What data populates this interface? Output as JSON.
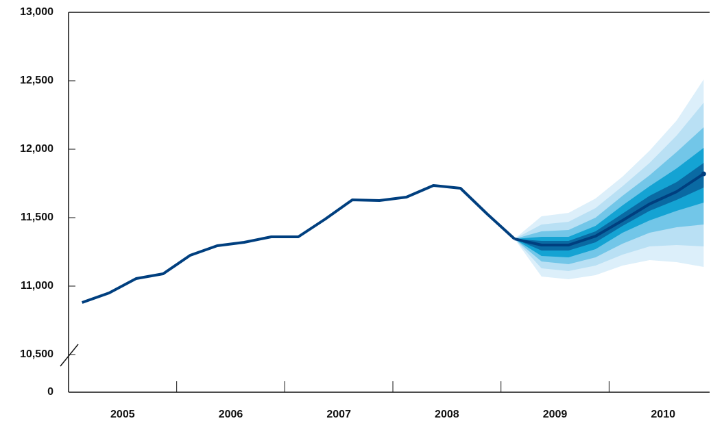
{
  "chart_data": {
    "type": "fan",
    "ylim": [
      10500,
      13000
    ],
    "yticks": [
      0,
      {
        "value": 10500,
        "label": "10,500"
      },
      {
        "value": 11000,
        "label": "11,000"
      },
      {
        "value": 11500,
        "label": "11,500"
      },
      {
        "value": 12000,
        "label": "12,000"
      },
      {
        "value": 12500,
        "label": "12,500"
      },
      {
        "value": 13000,
        "label": "13,000"
      }
    ],
    "axis_break": true,
    "xlim": [
      2005,
      2010.93
    ],
    "xticks": [
      {
        "value": 2005.5,
        "label": "2005"
      },
      {
        "value": 2006.5,
        "label": "2006"
      },
      {
        "value": 2007.5,
        "label": "2007"
      },
      {
        "value": 2008.5,
        "label": "2008"
      },
      {
        "value": 2009.5,
        "label": "2009"
      },
      {
        "value": 2010.5,
        "label": "2010"
      }
    ],
    "line": {
      "color": "#003f7f",
      "x": [
        2005.125,
        2005.375,
        2005.625,
        2005.875,
        2006.125,
        2006.375,
        2006.625,
        2006.875,
        2007.125,
        2007.375,
        2007.625,
        2007.875,
        2008.125,
        2008.375,
        2008.625,
        2008.875,
        2009.125
      ],
      "values": [
        10880,
        10950,
        11055,
        11090,
        11225,
        11295,
        11320,
        11360,
        11360,
        11490,
        11630,
        11625,
        11650,
        11735,
        11715,
        11525,
        11345
      ]
    },
    "projection": {
      "color": "#003f7f",
      "x": [
        2009.125,
        2009.375,
        2009.625,
        2009.875,
        2010.125,
        2010.375,
        2010.625,
        2010.875
      ],
      "values": [
        11345,
        11300,
        11300,
        11365,
        11480,
        11600,
        11690,
        11820
      ]
    },
    "fan": {
      "x": [
        2009.125,
        2009.375,
        2009.625,
        2009.875,
        2010.125,
        2010.375,
        2010.625,
        2010.875
      ],
      "bands": [
        {
          "color": "#dceffa",
          "upper": [
            11345,
            11510,
            11535,
            11640,
            11800,
            11990,
            12210,
            12510
          ],
          "lower": [
            11345,
            11070,
            11050,
            11080,
            11150,
            11190,
            11175,
            11140
          ]
        },
        {
          "color": "#b9e0f4",
          "upper": [
            11345,
            11450,
            11470,
            11570,
            11730,
            11900,
            12100,
            12340
          ],
          "lower": [
            11345,
            11130,
            11110,
            11150,
            11230,
            11290,
            11300,
            11290
          ]
        },
        {
          "color": "#72c6e8",
          "upper": [
            11345,
            11400,
            11410,
            11500,
            11660,
            11810,
            11980,
            12160
          ],
          "lower": [
            11345,
            11180,
            11160,
            11210,
            11310,
            11390,
            11430,
            11450
          ]
        },
        {
          "color": "#14a3d3",
          "upper": [
            11345,
            11360,
            11360,
            11440,
            11590,
            11730,
            11860,
            12010
          ],
          "lower": [
            11345,
            11220,
            11210,
            11270,
            11390,
            11480,
            11550,
            11610
          ]
        },
        {
          "color": "#0a6aa3",
          "upper": [
            11345,
            11330,
            11330,
            11400,
            11530,
            11660,
            11760,
            11900
          ],
          "lower": [
            11345,
            11260,
            11260,
            11320,
            11440,
            11550,
            11630,
            11720
          ]
        }
      ]
    }
  }
}
